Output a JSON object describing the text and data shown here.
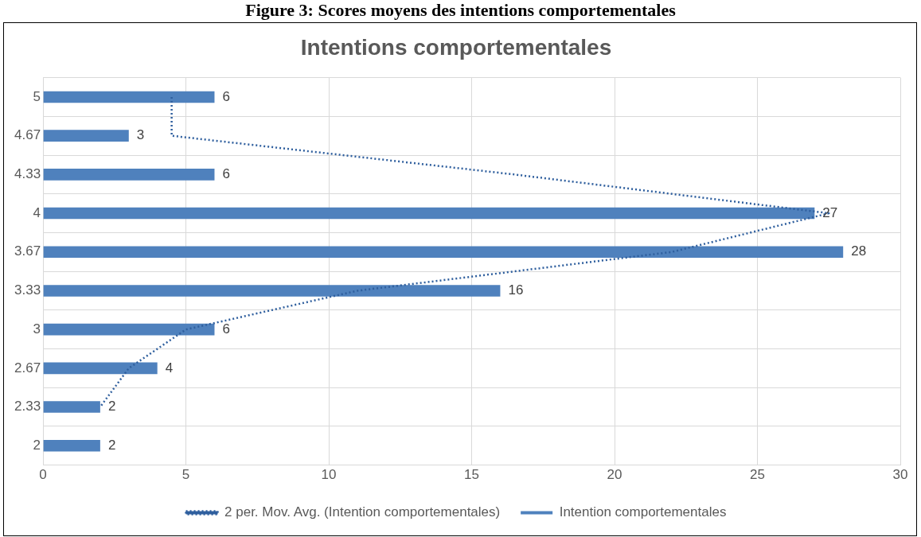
{
  "chart_data": {
    "type": "bar",
    "orientation": "horizontal",
    "title": "Figure 3: Scores moyens des intentions comportementales",
    "subtitle": "Intentions comportementales",
    "categories": [
      "5",
      "4.67",
      "4.33",
      "4",
      "3.67",
      "3.33",
      "3",
      "2.67",
      "2.33",
      "2"
    ],
    "series": [
      {
        "name": "Intention comportementales",
        "color": "#4f81bd",
        "values": [
          6,
          3,
          6,
          27,
          28,
          16,
          6,
          4,
          2,
          2
        ],
        "value_labels": [
          "6",
          "3",
          "6",
          "27",
          "28",
          "16",
          "6",
          "4",
          "2",
          "2"
        ]
      },
      {
        "name": "2 per. Mov. Avg. (Intention comportementales)",
        "type": "line",
        "color": "#2f5f9e",
        "line_style": "dotted",
        "marker": "none",
        "values": [
          4.5,
          4.5,
          16.5,
          27.5,
          22,
          11,
          5,
          3,
          2,
          null
        ]
      }
    ],
    "xlim": [
      0,
      30
    ],
    "xticks": [
      0,
      5,
      10,
      15,
      20,
      25,
      30
    ],
    "grid": true,
    "legend": "bottom"
  }
}
